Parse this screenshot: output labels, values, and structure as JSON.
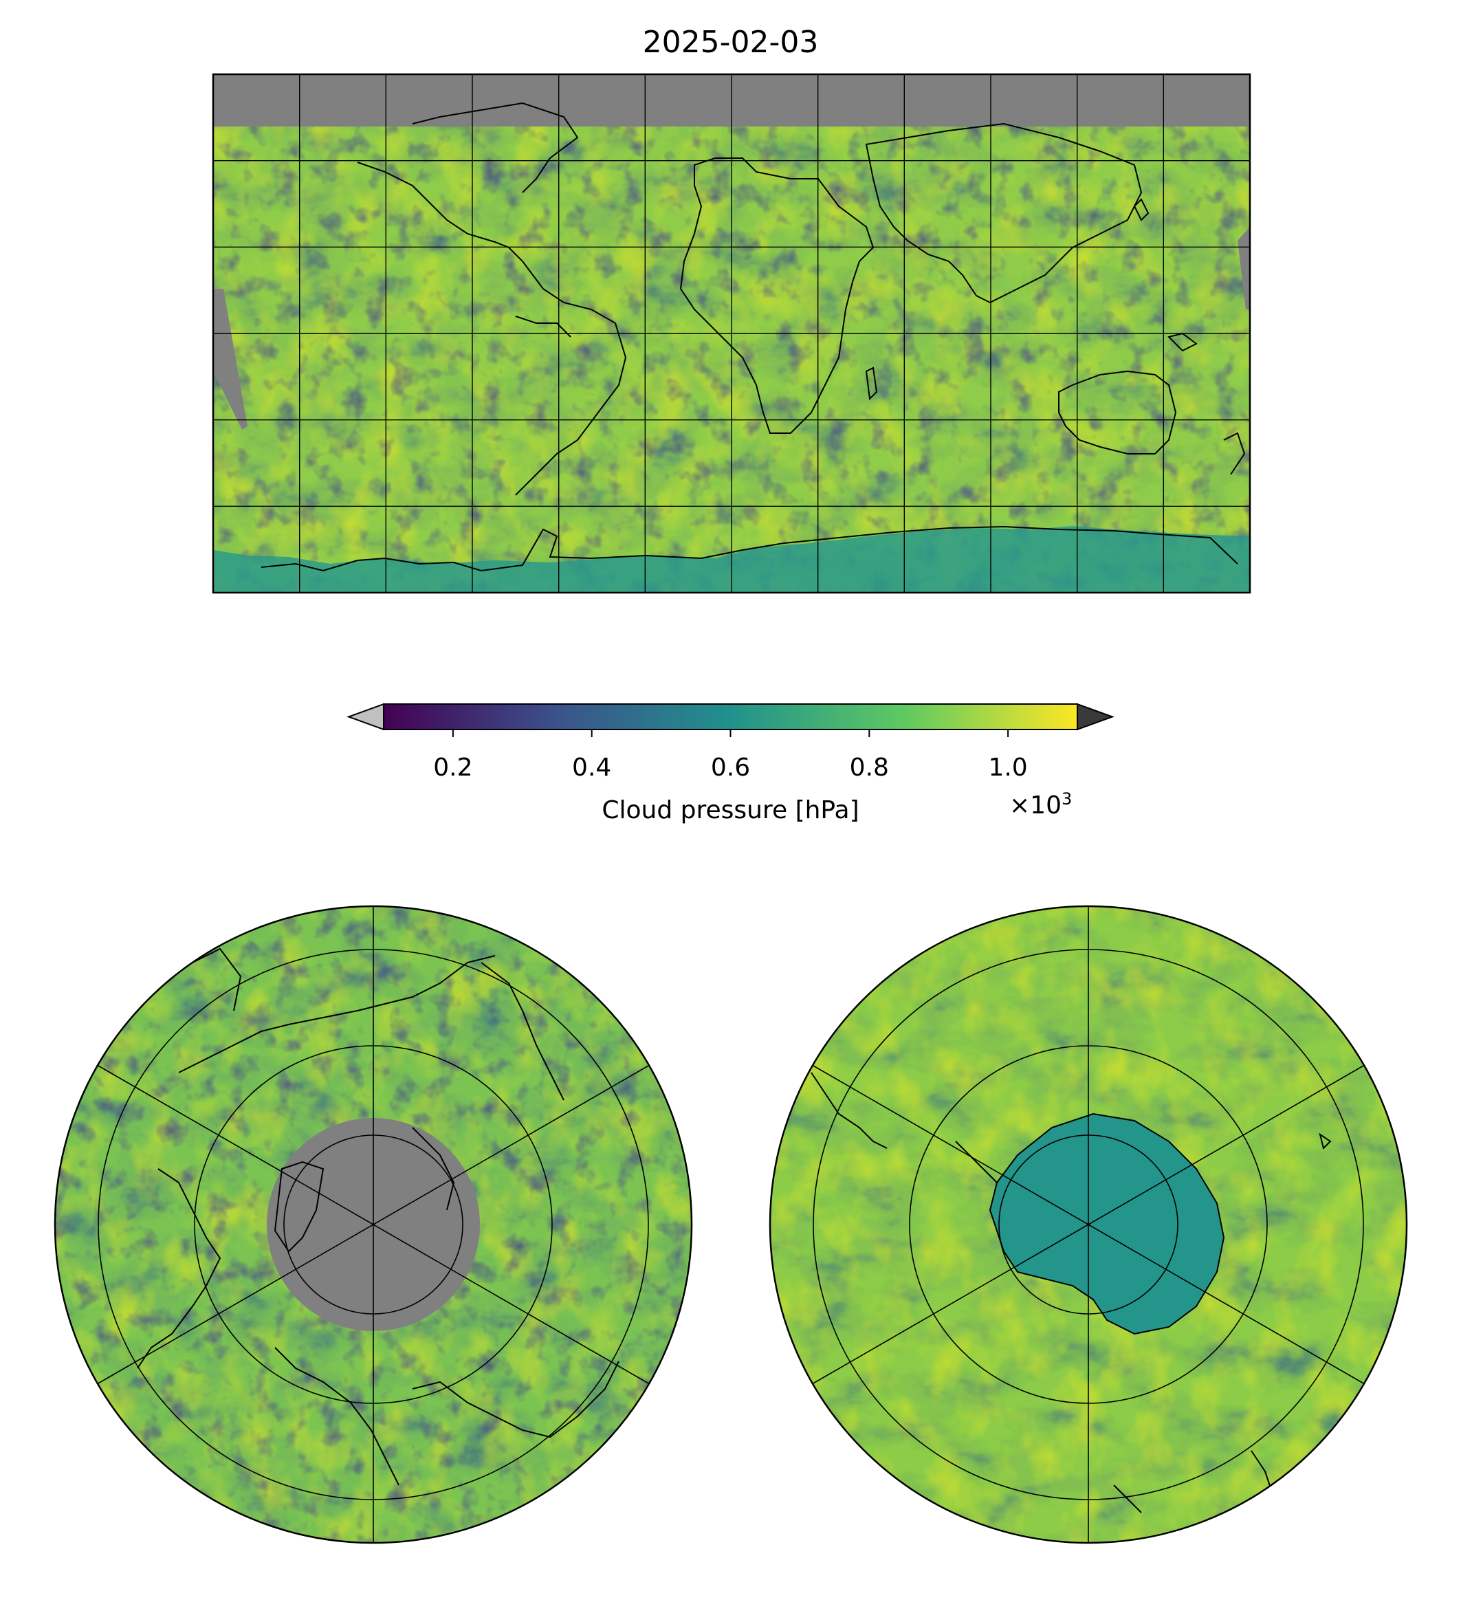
{
  "title": "2025-02-03",
  "colorbar": {
    "label": "Cloud pressure [hPa]",
    "multiplier_base": "×10",
    "multiplier_exp": "3",
    "ticks": [
      "0.2",
      "0.4",
      "0.6",
      "0.8",
      "1.0"
    ],
    "tick_values": [
      0.2,
      0.4,
      0.6,
      0.8,
      1.0
    ],
    "range": [
      0.1,
      1.1
    ],
    "extend": "both",
    "under_color": "#c0c0c0",
    "over_color": "#3a3a3a",
    "colormap": "viridis",
    "colormap_stops": [
      "#440154",
      "#3b528b",
      "#21918c",
      "#5ec962",
      "#fde725"
    ]
  },
  "maps": {
    "projection_global": "plate-carree",
    "projection_north": "north-polar-stereographic",
    "projection_south": "south-polar-stereographic",
    "missing_color": "#808080",
    "gridlines": true,
    "coastlines": true
  }
}
